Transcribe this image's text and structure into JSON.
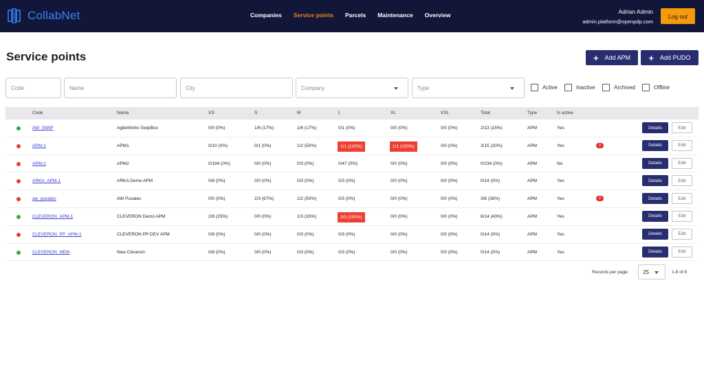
{
  "app": {
    "name": "CollabNet"
  },
  "nav": {
    "links": [
      "Companies",
      "Service points",
      "Parcels",
      "Maintenance",
      "Overview"
    ],
    "active": "Service points"
  },
  "user": {
    "name": "Adrian Admin",
    "email": "admin.platform@openpdp.com",
    "logout_label": "Log out"
  },
  "page": {
    "title": "Service points",
    "add_apm": "Add APM",
    "add_pudo": "Add PUDO"
  },
  "filters": {
    "code_placeholder": "Code",
    "name_placeholder": "Name",
    "city_placeholder": "City",
    "company_placeholder": "Company",
    "type_placeholder": "Type",
    "checks": [
      "Active",
      "Inactive",
      "Archived",
      "Offline"
    ]
  },
  "table": {
    "headers": [
      "Code",
      "Name",
      "XS",
      "S",
      "M",
      "L",
      "XL",
      "XXL",
      "Total",
      "Type",
      "Is active"
    ],
    "details_label": "Details",
    "edit_label": "Edit",
    "rows": [
      {
        "status": "green",
        "code": "AW_SWIP",
        "name": "AgileWorks SwipBox",
        "xs": "0/0 (0%)",
        "s": "1/6 (17%)",
        "m": "1/6 (17%)",
        "l": "0/1 (0%)",
        "xl": "0/0 (0%)",
        "xxl": "0/0 (0%)",
        "total": "2/13 (15%)",
        "type": "APM",
        "active": "Yes",
        "badge": "",
        "alert_l": false,
        "alert_xl": false
      },
      {
        "status": "red",
        "code": "APM-1",
        "name": "APM1",
        "xs": "0/10 (0%)",
        "s": "0/1 (0%)",
        "m": "1/2 (50%)",
        "l": "1/1 (100%)",
        "xl": "1/1 (100%)",
        "xxl": "0/0 (0%)",
        "total": "3/15 (20%)",
        "type": "APM",
        "active": "Yes",
        "badge": "2",
        "alert_l": true,
        "alert_xl": true
      },
      {
        "status": "red",
        "code": "APM-2",
        "name": "APM2",
        "xs": "0/184 (0%)",
        "s": "0/0 (0%)",
        "m": "0/3 (0%)",
        "l": "0/47 (0%)",
        "xl": "0/0 (0%)",
        "xxl": "0/0 (0%)",
        "total": "0/234 (0%)",
        "type": "APM",
        "active": "No",
        "badge": "",
        "alert_l": false,
        "alert_xl": false
      },
      {
        "status": "red",
        "code": "ARKA_APM-1",
        "name": "ARKA Demo APM",
        "xs": "0/8 (0%)",
        "s": "0/0 (0%)",
        "m": "0/3 (0%)",
        "l": "0/3 (0%)",
        "xl": "0/0 (0%)",
        "xxl": "0/0 (0%)",
        "total": "0/14 (0%)",
        "type": "APM",
        "active": "Yes",
        "badge": "",
        "alert_l": false,
        "alert_xl": false
      },
      {
        "status": "red",
        "code": "aw_pusatec",
        "name": "AW Pusatec",
        "xs": "0/0 (0%)",
        "s": "2/3 (67%)",
        "m": "1/2 (50%)",
        "l": "0/3 (0%)",
        "xl": "0/0 (0%)",
        "xxl": "0/0 (0%)",
        "total": "3/8 (38%)",
        "type": "APM",
        "active": "Yes",
        "badge": "2",
        "alert_l": false,
        "alert_xl": false
      },
      {
        "status": "green",
        "code": "CLEVERON_APM-1",
        "name": "CLEVERON Demo APM",
        "xs": "2/8 (25%)",
        "s": "0/0 (0%)",
        "m": "1/3 (33%)",
        "l": "3/3 (100%)",
        "xl": "0/0 (0%)",
        "xxl": "0/0 (0%)",
        "total": "6/14 (43%)",
        "type": "APM",
        "active": "Yes",
        "badge": "",
        "alert_l": true,
        "alert_xl": false
      },
      {
        "status": "red",
        "code": "CLEVERON_PP_APM-1",
        "name": "CLEVERON PP DEV APM",
        "xs": "0/8 (0%)",
        "s": "0/0 (0%)",
        "m": "0/3 (0%)",
        "l": "0/3 (0%)",
        "xl": "0/0 (0%)",
        "xxl": "0/0 (0%)",
        "total": "0/14 (0%)",
        "type": "APM",
        "active": "Yes",
        "badge": "",
        "alert_l": false,
        "alert_xl": false
      },
      {
        "status": "green",
        "code": "CLEVERON_NEW",
        "name": "New Cleveron",
        "xs": "0/8 (0%)",
        "s": "0/0 (0%)",
        "m": "0/3 (0%)",
        "l": "0/3 (0%)",
        "xl": "0/0 (0%)",
        "xxl": "0/0 (0%)",
        "total": "0/14 (0%)",
        "type": "APM",
        "active": "Yes",
        "badge": "",
        "alert_l": false,
        "alert_xl": false
      }
    ]
  },
  "pagination": {
    "label": "Records per page:",
    "per_page": "25",
    "range": "1-8 of 8"
  },
  "colors": {
    "navbar": "#12173a",
    "accent": "#f0821e",
    "primary": "#262e70",
    "alert": "#ef3f34",
    "ok": "#2ea84a",
    "bad": "#e53a30"
  }
}
